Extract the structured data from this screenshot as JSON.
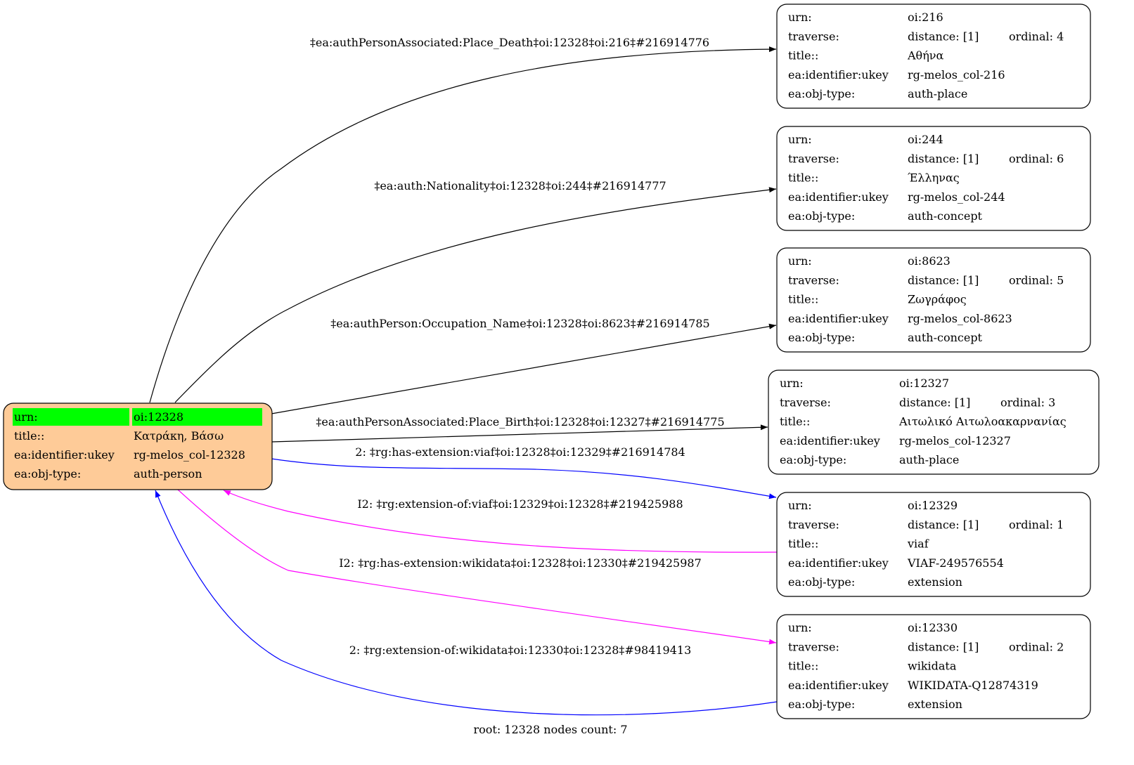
{
  "colors": {
    "root_fill": "#fecb98",
    "highlight": "#00ff00",
    "edge_default": "#000000",
    "edge_blue": "#0000ff",
    "edge_magenta": "#ff00ff"
  },
  "root": {
    "rows": [
      {
        "key": "urn:",
        "value": "oi:12328"
      },
      {
        "key": "title::",
        "value": "Κατράκη, Βάσω"
      },
      {
        "key": "ea:identifier:ukey",
        "value": "rg-melos_col-12328"
      },
      {
        "key": "ea:obj-type:",
        "value": "auth-person"
      }
    ]
  },
  "nodes": [
    {
      "urn": "oi:216",
      "distance": "distance: [1]",
      "ordinal": "ordinal: 4",
      "title": "Αθήνα",
      "ukey": "rg-melos_col-216",
      "type": "auth-place"
    },
    {
      "urn": "oi:244",
      "distance": "distance: [1]",
      "ordinal": "ordinal: 6",
      "title": "Έλληνας",
      "ukey": "rg-melos_col-244",
      "type": "auth-concept"
    },
    {
      "urn": "oi:8623",
      "distance": "distance: [1]",
      "ordinal": "ordinal: 5",
      "title": "Ζωγράφος",
      "ukey": "rg-melos_col-8623",
      "type": "auth-concept"
    },
    {
      "urn": "oi:12327",
      "distance": "distance: [1]",
      "ordinal": "ordinal: 3",
      "title": "Αιτωλικό Αιτωλοακαρνανίας",
      "ukey": "rg-melos_col-12327",
      "type": "auth-place"
    },
    {
      "urn": "oi:12329",
      "distance": "distance: [1]",
      "ordinal": "ordinal: 1",
      "title": "viaf",
      "ukey": "VIAF-249576554",
      "type": "extension"
    },
    {
      "urn": "oi:12330",
      "distance": "distance: [1]",
      "ordinal": "ordinal: 2",
      "title": "wikidata",
      "ukey": "WIKIDATA-Q12874319",
      "type": "extension"
    }
  ],
  "keys": {
    "urn": "urn:",
    "traverse": "traverse:",
    "title": "title::",
    "ukey": "ea:identifier:ukey",
    "type": "ea:obj-type:"
  },
  "edges": [
    {
      "label": "‡ea:authPersonAssociated:Place_Death‡oi:12328‡oi:216‡#216914776",
      "color": "#000000"
    },
    {
      "label": "‡ea:auth:Nationality‡oi:12328‡oi:244‡#216914777",
      "color": "#000000"
    },
    {
      "label": "‡ea:authPerson:Occupation_Name‡oi:12328‡oi:8623‡#216914785",
      "color": "#000000"
    },
    {
      "label": "‡ea:authPersonAssociated:Place_Birth‡oi:12328‡oi:12327‡#216914775",
      "color": "#000000"
    },
    {
      "label": "2: ‡rg:has-extension:viaf‡oi:12328‡oi:12329‡#216914784",
      "color": "#0000ff"
    },
    {
      "label": "I2: ‡rg:extension-of:viaf‡oi:12329‡oi:12328‡#219425988",
      "color": "#ff00ff"
    },
    {
      "label": "I2: ‡rg:has-extension:wikidata‡oi:12328‡oi:12330‡#219425987",
      "color": "#ff00ff"
    },
    {
      "label": "2: ‡rg:extension-of:wikidata‡oi:12330‡oi:12328‡#98419413",
      "color": "#0000ff"
    }
  ],
  "footer": "root: 12328 nodes count: 7"
}
